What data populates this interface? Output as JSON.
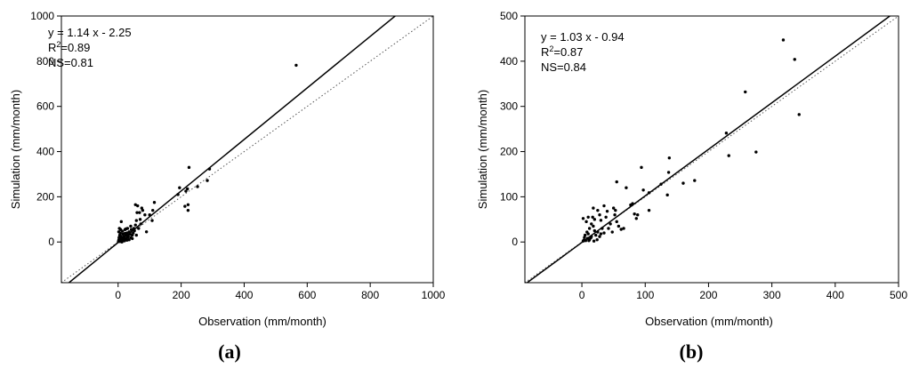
{
  "chart_data": [
    {
      "type": "scatter",
      "panel_label": "(a)",
      "xlabel": "Observation (mm/month)",
      "ylabel": "Simulation (mm/month)",
      "xlim": [
        -180,
        1000
      ],
      "ylim": [
        -180,
        1000
      ],
      "xticks": [
        0,
        200,
        400,
        600,
        800,
        1000
      ],
      "yticks": [
        0,
        200,
        400,
        600,
        800,
        1000
      ],
      "annotation": {
        "eq": "y = 1.14 x - 2.25",
        "r2_prefix": "R",
        "r2_sup": "2",
        "r2_value": "=0.89",
        "ns": "NS=0.81"
      },
      "fit_line": {
        "slope": 1.14,
        "intercept": -2.25
      },
      "one_to_one_line": true,
      "grid": false,
      "points": [
        [
          565,
          782
        ],
        [
          290,
          323
        ],
        [
          283,
          272
        ],
        [
          252,
          245
        ],
        [
          225,
          330
        ],
        [
          220,
          235
        ],
        [
          215,
          225
        ],
        [
          212,
          158
        ],
        [
          222,
          165
        ],
        [
          222,
          140
        ],
        [
          195,
          240
        ],
        [
          190,
          210
        ],
        [
          115,
          175
        ],
        [
          110,
          140
        ],
        [
          108,
          95
        ],
        [
          100,
          120
        ],
        [
          78,
          140
        ],
        [
          75,
          150
        ],
        [
          68,
          130
        ],
        [
          62,
          160
        ],
        [
          60,
          130
        ],
        [
          55,
          165
        ],
        [
          58,
          95
        ],
        [
          55,
          75
        ],
        [
          50,
          60
        ],
        [
          48,
          40
        ],
        [
          45,
          30
        ],
        [
          42,
          55
        ],
        [
          40,
          70
        ],
        [
          35,
          45
        ],
        [
          30,
          20
        ],
        [
          30,
          60
        ],
        [
          28,
          40
        ],
        [
          25,
          30
        ],
        [
          22,
          55
        ],
        [
          20,
          10
        ],
        [
          18,
          25
        ],
        [
          15,
          35
        ],
        [
          15,
          5
        ],
        [
          12,
          20
        ],
        [
          10,
          15
        ],
        [
          10,
          90
        ],
        [
          8,
          55
        ],
        [
          7,
          40
        ],
        [
          6,
          10
        ],
        [
          5,
          30
        ],
        [
          4,
          5
        ],
        [
          3,
          20
        ],
        [
          2,
          8
        ],
        [
          2,
          45
        ],
        [
          1,
          2
        ],
        [
          12,
          0
        ],
        [
          20,
          5
        ],
        [
          25,
          15
        ],
        [
          35,
          10
        ],
        [
          40,
          20
        ],
        [
          45,
          15
        ],
        [
          28,
          8
        ],
        [
          18,
          12
        ],
        [
          8,
          25
        ],
        [
          14,
          48
        ],
        [
          22,
          38
        ],
        [
          32,
          25
        ],
        [
          38,
          35
        ],
        [
          70,
          100
        ],
        [
          65,
          60
        ],
        [
          85,
          120
        ],
        [
          72,
          80
        ],
        [
          90,
          45
        ],
        [
          58,
          30
        ],
        [
          52,
          50
        ],
        [
          25,
          58
        ],
        [
          6,
          2
        ],
        [
          3,
          12
        ],
        [
          4,
          60
        ],
        [
          30,
          30
        ]
      ]
    },
    {
      "type": "scatter",
      "panel_label": "(b)",
      "xlabel": "Observation (mm/month)",
      "ylabel": "Simulation (mm/month)",
      "xlim": [
        -90,
        500
      ],
      "ylim": [
        -90,
        500
      ],
      "xticks": [
        0,
        100,
        200,
        300,
        400,
        500
      ],
      "yticks": [
        0,
        100,
        200,
        300,
        400,
        500
      ],
      "annotation": {
        "eq": "y = 1.03 x - 0.94",
        "r2_prefix": "R",
        "r2_sup": "2",
        "r2_value": "=0.87",
        "ns": "NS=0.84"
      },
      "fit_line": {
        "slope": 1.03,
        "intercept": -0.94
      },
      "one_to_one_line": true,
      "grid": false,
      "points": [
        [
          318,
          447
        ],
        [
          336,
          404
        ],
        [
          258,
          332
        ],
        [
          343,
          282
        ],
        [
          228,
          241
        ],
        [
          232,
          191
        ],
        [
          275,
          199
        ],
        [
          138,
          186
        ],
        [
          137,
          154
        ],
        [
          135,
          104
        ],
        [
          94,
          165
        ],
        [
          70,
          120
        ],
        [
          55,
          133
        ],
        [
          106,
          109
        ],
        [
          106,
          70
        ],
        [
          97,
          115
        ],
        [
          88,
          60
        ],
        [
          83,
          62
        ],
        [
          86,
          52
        ],
        [
          80,
          85
        ],
        [
          62,
          28
        ],
        [
          55,
          45
        ],
        [
          52,
          60
        ],
        [
          50,
          75
        ],
        [
          45,
          40
        ],
        [
          40,
          68
        ],
        [
          38,
          55
        ],
        [
          35,
          80
        ],
        [
          32,
          30
        ],
        [
          30,
          48
        ],
        [
          30,
          18
        ],
        [
          28,
          60
        ],
        [
          25,
          70
        ],
        [
          22,
          15
        ],
        [
          20,
          25
        ],
        [
          18,
          35
        ],
        [
          18,
          75
        ],
        [
          17,
          55
        ],
        [
          15,
          12
        ],
        [
          15,
          40
        ],
        [
          12,
          5
        ],
        [
          12,
          30
        ],
        [
          10,
          18
        ],
        [
          10,
          55
        ],
        [
          9,
          8
        ],
        [
          8,
          22
        ],
        [
          7,
          45
        ],
        [
          6,
          3
        ],
        [
          5,
          15
        ],
        [
          4,
          10
        ],
        [
          3,
          4
        ],
        [
          2,
          52
        ],
        [
          2,
          2
        ],
        [
          20,
          50
        ],
        [
          25,
          22
        ],
        [
          14,
          9
        ],
        [
          11,
          3
        ],
        [
          24,
          5
        ],
        [
          28,
          12
        ],
        [
          19,
          2
        ],
        [
          42,
          30
        ],
        [
          35,
          20
        ],
        [
          48,
          22
        ],
        [
          53,
          70
        ],
        [
          58,
          35
        ],
        [
          66,
          30
        ],
        [
          77,
          82
        ],
        [
          160,
          130
        ],
        [
          178,
          136
        ],
        [
          125,
          128
        ]
      ]
    }
  ]
}
